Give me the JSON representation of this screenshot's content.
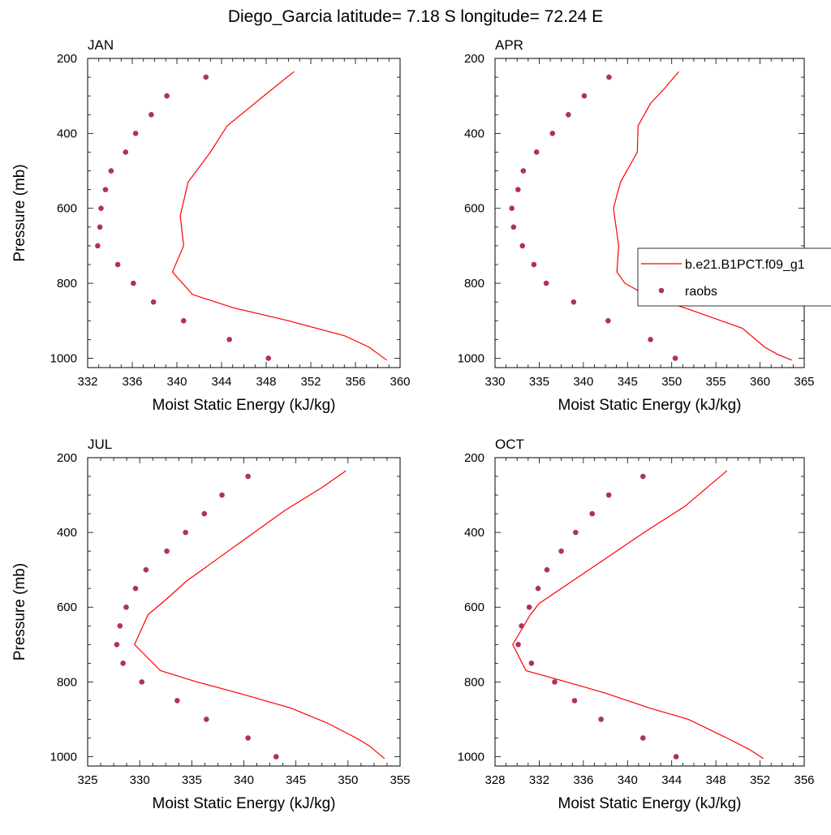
{
  "figure_title": "Diego_Garcia  latitude= 7.18 S longitude= 72.24 E",
  "colors": {
    "model": "#ff0000",
    "obs": "#b03060",
    "axis": "#000000"
  },
  "legend": {
    "model_label": "b.e21.B1PCT.f09_g1",
    "obs_label": "raobs"
  },
  "chart_data": [
    {
      "type": "line",
      "panel": "JAN",
      "xlabel": "Moist Static Energy (kJ/kg)",
      "ylabel": "Pressure (mb)",
      "xlim": [
        332,
        360
      ],
      "xticks": [
        332,
        336,
        340,
        344,
        348,
        352,
        356,
        360
      ],
      "ylim": [
        200,
        1025
      ],
      "yticks": [
        200,
        400,
        600,
        800,
        1000
      ],
      "y_reversed": true,
      "model": {
        "x": [
          350.5,
          348.2,
          344.5,
          343.0,
          341.0,
          340.3,
          340.6,
          339.6,
          341.4,
          345.0,
          350.0,
          355.0,
          357.2,
          358.8
        ],
        "y": [
          235,
          290,
          380,
          450,
          530,
          620,
          700,
          770,
          830,
          865,
          900,
          940,
          970,
          1005
        ]
      },
      "obs": {
        "x": [
          342.6,
          339.1,
          337.7,
          336.3,
          335.4,
          334.1,
          333.6,
          333.2,
          333.1,
          332.9,
          334.7,
          336.1,
          337.9,
          340.6,
          344.7,
          348.2
        ],
        "y": [
          250,
          300,
          350,
          400,
          450,
          500,
          550,
          600,
          650,
          700,
          750,
          800,
          850,
          900,
          950,
          1000
        ]
      }
    },
    {
      "type": "line",
      "panel": "APR",
      "xlabel": "Moist Static Energy (kJ/kg)",
      "ylabel": "",
      "xlim": [
        330,
        365
      ],
      "xticks": [
        330,
        335,
        340,
        345,
        350,
        355,
        360,
        365
      ],
      "ylim": [
        200,
        1025
      ],
      "yticks": [
        200,
        400,
        600,
        800,
        1000
      ],
      "y_reversed": true,
      "model": {
        "x": [
          350.8,
          349.2,
          347.6,
          346.2,
          346.1,
          344.2,
          343.4,
          344.0,
          343.8,
          344.7,
          347.0,
          352.0,
          358.0,
          360.5,
          362.0,
          363.6
        ],
        "y": [
          235,
          280,
          320,
          380,
          450,
          530,
          600,
          700,
          770,
          800,
          830,
          870,
          920,
          970,
          990,
          1005
        ]
      },
      "obs": {
        "x": [
          342.9,
          340.1,
          338.3,
          336.5,
          334.7,
          333.2,
          332.6,
          331.9,
          332.1,
          333.1,
          334.4,
          335.8,
          338.9,
          342.8,
          347.6,
          350.4
        ],
        "y": [
          250,
          300,
          350,
          400,
          450,
          500,
          550,
          600,
          650,
          700,
          750,
          800,
          850,
          900,
          950,
          1000
        ]
      }
    },
    {
      "type": "line",
      "panel": "JUL",
      "xlabel": "Moist Static Energy (kJ/kg)",
      "ylabel": "Pressure (mb)",
      "xlim": [
        325,
        355
      ],
      "xticks": [
        325,
        330,
        335,
        340,
        345,
        350,
        355
      ],
      "ylim": [
        200,
        1025
      ],
      "yticks": [
        200,
        400,
        600,
        800,
        1000
      ],
      "y_reversed": true,
      "model": {
        "x": [
          349.8,
          347.5,
          344.0,
          340.0,
          334.5,
          332.5,
          330.8,
          329.5,
          332.0,
          335.5,
          339.5,
          344.5,
          348.0,
          350.8,
          352.0,
          353.5
        ],
        "y": [
          235,
          280,
          340,
          420,
          530,
          580,
          620,
          700,
          770,
          800,
          830,
          870,
          910,
          950,
          970,
          1005
        ]
      },
      "obs": {
        "x": [
          340.4,
          337.9,
          336.2,
          334.4,
          332.6,
          330.6,
          329.6,
          328.7,
          328.1,
          327.8,
          328.4,
          330.2,
          333.6,
          336.4,
          340.4,
          343.1
        ],
        "y": [
          250,
          300,
          350,
          400,
          450,
          500,
          550,
          600,
          650,
          700,
          750,
          800,
          850,
          900,
          950,
          1000
        ]
      }
    },
    {
      "type": "line",
      "panel": "OCT",
      "xlabel": "Moist Static Energy (kJ/kg)",
      "ylabel": "",
      "xlim": [
        328,
        356
      ],
      "xticks": [
        328,
        332,
        336,
        340,
        344,
        348,
        352,
        356
      ],
      "ylim": [
        200,
        1025
      ],
      "yticks": [
        200,
        400,
        600,
        800,
        1000
      ],
      "y_reversed": true,
      "model": {
        "x": [
          349.0,
          347.2,
          345.2,
          341.5,
          339.0,
          335.0,
          332.0,
          331.2,
          329.6,
          330.8,
          334.5,
          338.0,
          342.0,
          345.5,
          349.0,
          351.0,
          352.3
        ],
        "y": [
          235,
          280,
          330,
          400,
          450,
          530,
          590,
          620,
          700,
          770,
          800,
          830,
          870,
          900,
          950,
          980,
          1005
        ]
      },
      "obs": {
        "x": [
          341.4,
          338.3,
          336.8,
          335.3,
          334.0,
          332.7,
          331.9,
          331.1,
          330.4,
          330.1,
          331.3,
          333.4,
          335.2,
          337.6,
          341.4,
          344.4
        ],
        "y": [
          250,
          300,
          350,
          400,
          450,
          500,
          550,
          600,
          650,
          700,
          750,
          800,
          850,
          900,
          950,
          1000
        ]
      }
    }
  ]
}
